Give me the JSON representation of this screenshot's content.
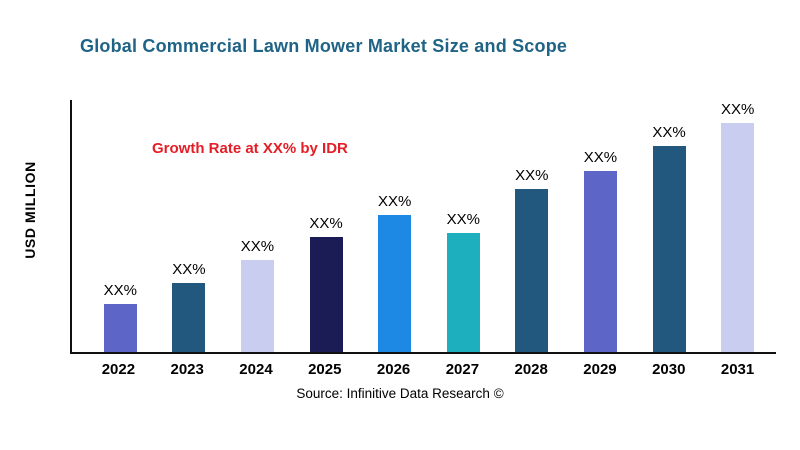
{
  "header": {
    "title": "Global Commercial Lawn Mower Market Size and Scope"
  },
  "chart_data": {
    "type": "bar",
    "title": "Global Commercial Lawn Mower Market Size and Scope",
    "categories": [
      "2022",
      "2023",
      "2024",
      "2025",
      "2026",
      "2027",
      "2028",
      "2029",
      "2030",
      "2031"
    ],
    "values": [
      21,
      30,
      40,
      50,
      60,
      52,
      71,
      79,
      90,
      100
    ],
    "bar_labels": [
      "XX%",
      "XX%",
      "XX%",
      "XX%",
      "XX%",
      "XX%",
      "XX%",
      "XX%",
      "XX%",
      "XX%"
    ],
    "bar_colors": [
      "#5d65c6",
      "#22587e",
      "#c9cdf0",
      "#1b1b55",
      "#1e88e5",
      "#1dafbd",
      "#22587e",
      "#5d65c6",
      "#22587e",
      "#c9cdf0"
    ],
    "xlabel": "",
    "ylabel": "USD MILLION",
    "ylim": [
      0,
      110
    ],
    "grid": false,
    "legend": false,
    "annotation": {
      "text": "Growth Rate at XX% by IDR",
      "color": "#e41e26"
    }
  },
  "footer": {
    "source": "Source: Infinitive Data Research ©"
  },
  "colors": {
    "title": "#1f6386",
    "axis": "#111111"
  }
}
